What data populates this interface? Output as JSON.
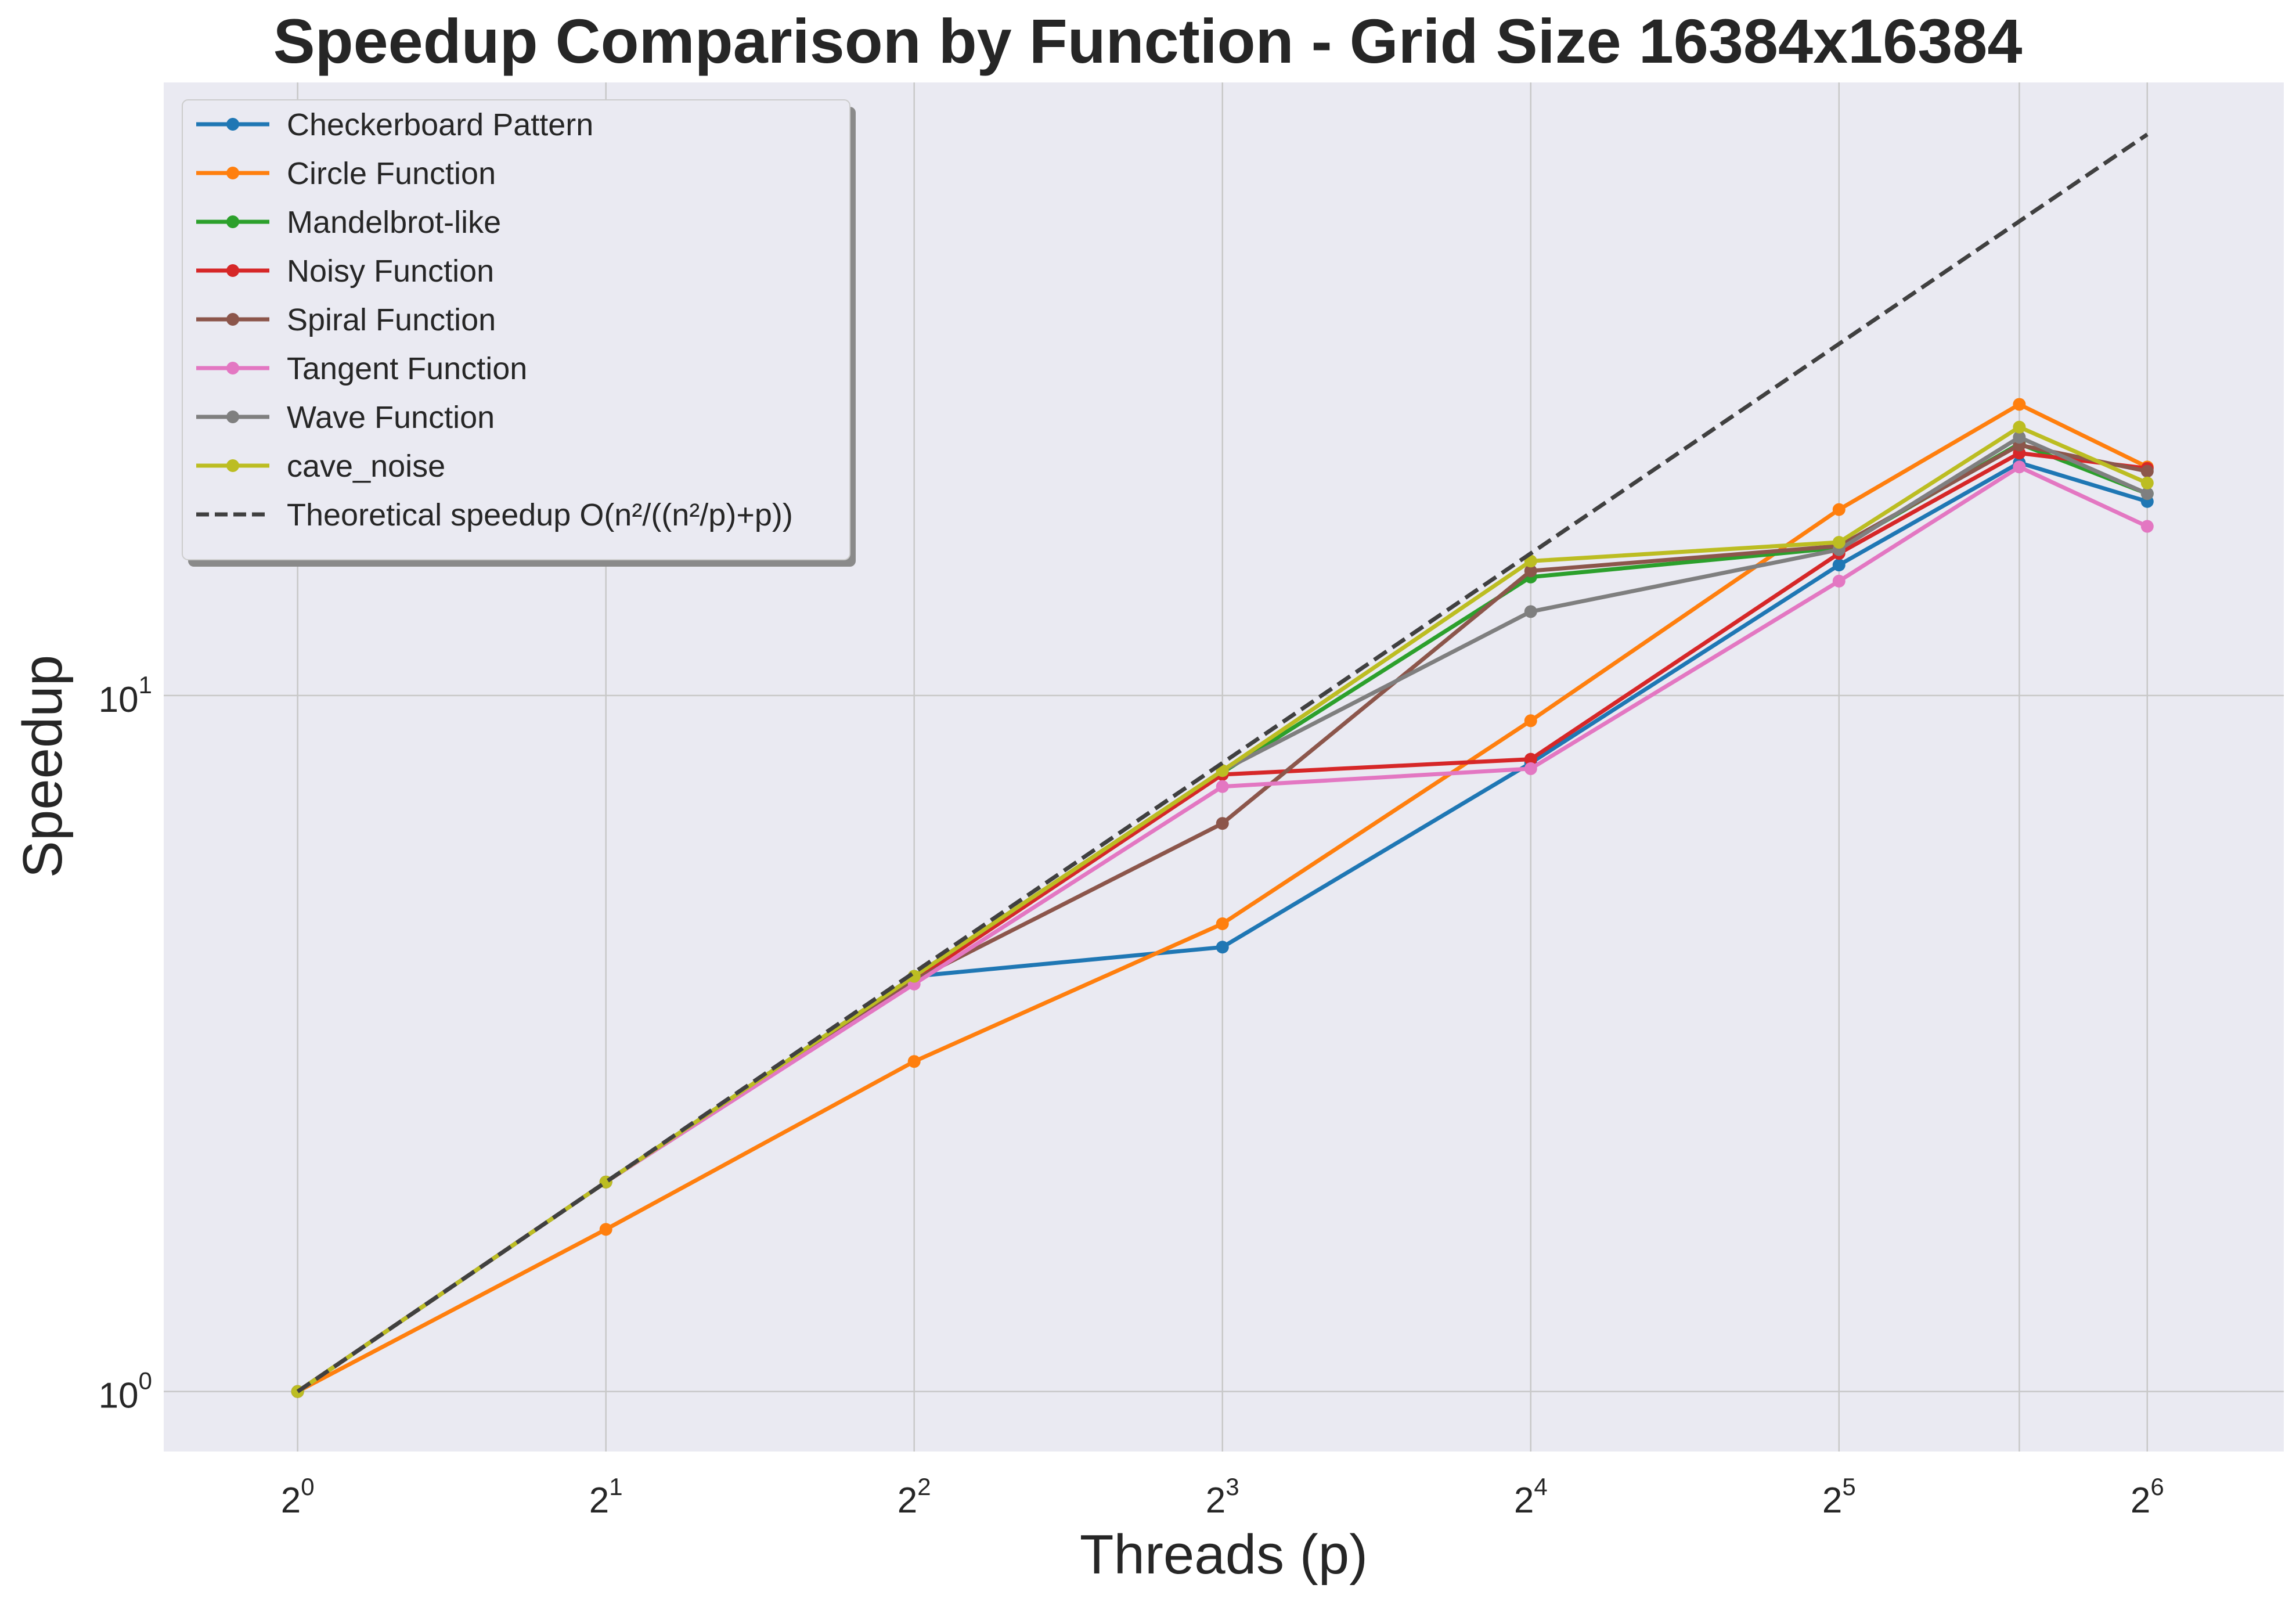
{
  "chart_data": {
    "type": "line",
    "title": "Speedup Comparison by Function - Grid Size 16384x16384",
    "xlabel": "Threads (p)",
    "ylabel": "Speedup",
    "xscale": "log2",
    "yscale": "log10",
    "xlim": [
      0.74,
      87
    ],
    "ylim": [
      0.82,
      76
    ],
    "grid": true,
    "legend_position": "top-left",
    "x_ticks": [
      {
        "base": "2",
        "exp": "0",
        "value": 1
      },
      {
        "base": "2",
        "exp": "1",
        "value": 2
      },
      {
        "base": "2",
        "exp": "2",
        "value": 4
      },
      {
        "base": "2",
        "exp": "3",
        "value": 8
      },
      {
        "base": "2",
        "exp": "4",
        "value": 16
      },
      {
        "base": "2",
        "exp": "5",
        "value": 32
      },
      {
        "base": "2",
        "exp": "6",
        "value": 64
      }
    ],
    "y_ticks": [
      {
        "base": "10",
        "exp": "0",
        "value": 1
      },
      {
        "base": "10",
        "exp": "1",
        "value": 10
      }
    ],
    "x": [
      1,
      2,
      4,
      8,
      16,
      32,
      48,
      64
    ],
    "series": [
      {
        "name": "Checkerboard Pattern",
        "color": "#1f77b4",
        "values": [
          1,
          2.0,
          3.95,
          4.35,
          8.0,
          15.4,
          21.6,
          19.0
        ]
      },
      {
        "name": "Circle Function",
        "color": "#ff7f0e",
        "values": [
          1,
          1.71,
          2.98,
          4.7,
          9.2,
          18.5,
          26.2,
          21.3
        ]
      },
      {
        "name": "Mandelbrot-like",
        "color": "#2ca02c",
        "values": [
          1,
          2.0,
          3.95,
          7.75,
          14.8,
          16.3,
          23.0,
          19.5
        ]
      },
      {
        "name": "Noisy Function",
        "color": "#d62728",
        "values": [
          1,
          2.0,
          3.9,
          7.7,
          8.1,
          16.0,
          22.3,
          21.2
        ]
      },
      {
        "name": "Spiral Function",
        "color": "#8c564b",
        "values": [
          1,
          2.0,
          3.9,
          6.55,
          15.1,
          16.4,
          22.9,
          21.0
        ]
      },
      {
        "name": "Tangent Function",
        "color": "#e377c2",
        "values": [
          1,
          2.0,
          3.85,
          7.4,
          7.85,
          14.6,
          21.3,
          17.5
        ]
      },
      {
        "name": "Wave Function",
        "color": "#7f7f7f",
        "values": [
          1,
          2.0,
          3.95,
          7.8,
          13.2,
          16.2,
          23.5,
          19.5
        ]
      },
      {
        "name": "cave_noise",
        "color": "#bcbd22",
        "values": [
          1,
          2.0,
          3.95,
          7.8,
          15.6,
          16.6,
          24.3,
          20.2
        ]
      }
    ],
    "theoretical": {
      "name": "Theoretical speedup O(n²/((n²/p)+p))",
      "color": "#404040",
      "x": [
        1,
        2,
        4,
        8,
        16,
        32,
        48,
        64
      ],
      "values": [
        1,
        2.0,
        4.0,
        8.0,
        16.0,
        32.0,
        48.0,
        64.0
      ]
    },
    "colors": {
      "plot_bg": "#eaeaf2",
      "grid": "#c8c8c8"
    }
  }
}
